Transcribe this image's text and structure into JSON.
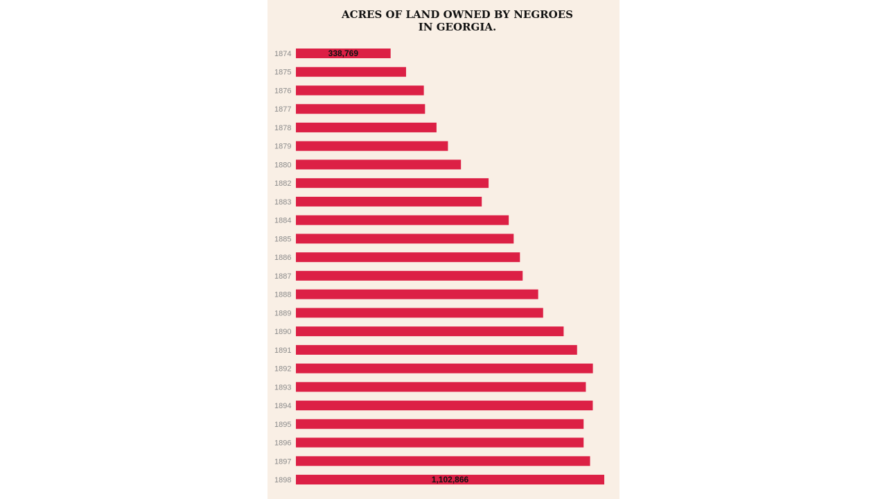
{
  "chart_data": {
    "type": "bar",
    "orientation": "horizontal",
    "title_lines": [
      "ACRES OF LAND OWNED BY NEGROES",
      "IN GEORGIA."
    ],
    "categories": [
      "1874",
      "1875",
      "1876",
      "1877",
      "1878",
      "1879",
      "1880",
      "1882",
      "1883",
      "1884",
      "1885",
      "1886",
      "1887",
      "1888",
      "1889",
      "1890",
      "1891",
      "1892",
      "1893",
      "1894",
      "1895",
      "1896",
      "1897",
      "1898"
    ],
    "values": [
      338769,
      394000,
      457600,
      461800,
      502900,
      543800,
      590300,
      689200,
      664700,
      761200,
      778900,
      801300,
      811000,
      866500,
      884200,
      957600,
      1005600,
      1062200,
      1037000,
      1061800,
      1029000,
      1029000,
      1052100,
      1102866
    ],
    "data_labels": [
      {
        "index": 0,
        "text": "338,769"
      },
      {
        "index": 23,
        "text": "1,102,866"
      }
    ],
    "xlim": [
      0,
      1102866
    ],
    "grid": false,
    "bar_color": "#dc2045",
    "background_color": "#f9efe5"
  }
}
